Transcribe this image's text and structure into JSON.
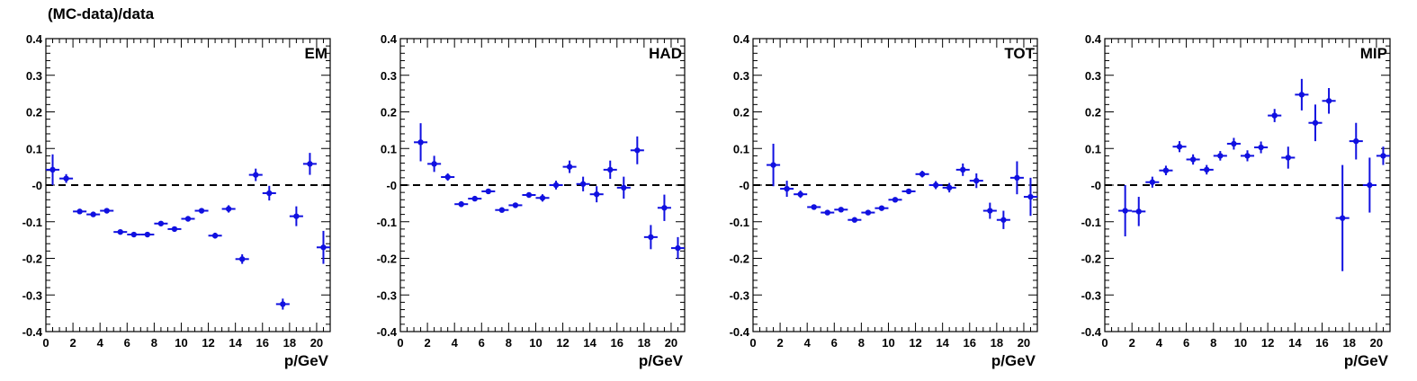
{
  "figure": {
    "ylabel": "(MC-data)/data",
    "xlabel": "p/GeV"
  },
  "colors": {
    "marker": "#1010e0",
    "reference_line": "#000000"
  },
  "chart_data": [
    {
      "type": "scatter",
      "title": "EM",
      "xlabel": "p/GeV",
      "ylabel": "(MC-data)/data",
      "xlim": [
        0,
        21
      ],
      "ylim": [
        -0.4,
        0.4
      ],
      "xticks": [
        "0",
        "2",
        "4",
        "6",
        "8",
        "10",
        "12",
        "14",
        "16",
        "18",
        "20"
      ],
      "yticks": [
        "-0.4",
        "-0.3",
        "-0.2",
        "-0.1",
        "-0",
        "0.1",
        "0.2",
        "0.3",
        "0.4"
      ],
      "reference_line": 0,
      "points": [
        {
          "x": 0.5,
          "y": 0.042,
          "err": 0.042
        },
        {
          "x": 1.5,
          "y": 0.018,
          "err": 0.012
        },
        {
          "x": 2.5,
          "y": -0.072,
          "err": 0.005
        },
        {
          "x": 3.5,
          "y": -0.08,
          "err": 0.005
        },
        {
          "x": 4.5,
          "y": -0.07,
          "err": 0.005
        },
        {
          "x": 5.5,
          "y": -0.128,
          "err": 0.005
        },
        {
          "x": 6.5,
          "y": -0.135,
          "err": 0.005
        },
        {
          "x": 7.5,
          "y": -0.135,
          "err": 0.005
        },
        {
          "x": 8.5,
          "y": -0.105,
          "err": 0.005
        },
        {
          "x": 9.5,
          "y": -0.12,
          "err": 0.006
        },
        {
          "x": 10.5,
          "y": -0.092,
          "err": 0.006
        },
        {
          "x": 11.5,
          "y": -0.07,
          "err": 0.007
        },
        {
          "x": 12.5,
          "y": -0.138,
          "err": 0.008
        },
        {
          "x": 13.5,
          "y": -0.065,
          "err": 0.01
        },
        {
          "x": 14.5,
          "y": -0.202,
          "err": 0.013
        },
        {
          "x": 15.5,
          "y": 0.028,
          "err": 0.017
        },
        {
          "x": 16.5,
          "y": -0.022,
          "err": 0.02
        },
        {
          "x": 17.5,
          "y": -0.325,
          "err": 0.015
        },
        {
          "x": 18.5,
          "y": -0.085,
          "err": 0.027
        },
        {
          "x": 19.5,
          "y": 0.058,
          "err": 0.03
        },
        {
          "x": 20.5,
          "y": -0.17,
          "err": 0.045
        }
      ]
    },
    {
      "type": "scatter",
      "title": "HAD",
      "xlabel": "p/GeV",
      "ylabel": "",
      "xlim": [
        0,
        21
      ],
      "ylim": [
        -0.4,
        0.4
      ],
      "xticks": [
        "0",
        "2",
        "4",
        "6",
        "8",
        "10",
        "12",
        "14",
        "16",
        "18",
        "20"
      ],
      "yticks": [
        "-0.4",
        "-0.3",
        "-0.2",
        "-0.1",
        "-0",
        "0.1",
        "0.2",
        "0.3",
        "0.4"
      ],
      "reference_line": 0,
      "points": [
        {
          "x": 1.5,
          "y": 0.117,
          "err": 0.052
        },
        {
          "x": 2.5,
          "y": 0.058,
          "err": 0.022
        },
        {
          "x": 3.5,
          "y": 0.022,
          "err": 0.01
        },
        {
          "x": 4.5,
          "y": -0.052,
          "err": 0.008
        },
        {
          "x": 5.5,
          "y": -0.037,
          "err": 0.007
        },
        {
          "x": 6.5,
          "y": -0.017,
          "err": 0.006
        },
        {
          "x": 7.5,
          "y": -0.068,
          "err": 0.005
        },
        {
          "x": 8.5,
          "y": -0.055,
          "err": 0.005
        },
        {
          "x": 9.5,
          "y": -0.027,
          "err": 0.007
        },
        {
          "x": 10.5,
          "y": -0.035,
          "err": 0.01
        },
        {
          "x": 11.5,
          "y": 0.0,
          "err": 0.012
        },
        {
          "x": 12.5,
          "y": 0.05,
          "err": 0.017
        },
        {
          "x": 13.5,
          "y": 0.003,
          "err": 0.02
        },
        {
          "x": 14.5,
          "y": -0.025,
          "err": 0.022
        },
        {
          "x": 15.5,
          "y": 0.042,
          "err": 0.025
        },
        {
          "x": 16.5,
          "y": -0.007,
          "err": 0.03
        },
        {
          "x": 17.5,
          "y": 0.095,
          "err": 0.038
        },
        {
          "x": 18.5,
          "y": -0.142,
          "err": 0.033
        },
        {
          "x": 19.5,
          "y": -0.062,
          "err": 0.036
        },
        {
          "x": 20.5,
          "y": -0.172,
          "err": 0.03
        }
      ]
    },
    {
      "type": "scatter",
      "title": "TOT",
      "xlabel": "p/GeV",
      "ylabel": "",
      "xlim": [
        0,
        21
      ],
      "ylim": [
        -0.4,
        0.4
      ],
      "xticks": [
        "0",
        "2",
        "4",
        "6",
        "8",
        "10",
        "12",
        "14",
        "16",
        "18",
        "20"
      ],
      "yticks": [
        "-0.4",
        "-0.3",
        "-0.2",
        "-0.1",
        "-0",
        "0.1",
        "0.2",
        "0.3",
        "0.4"
      ],
      "reference_line": 0,
      "points": [
        {
          "x": 1.5,
          "y": 0.055,
          "err": 0.058
        },
        {
          "x": 2.5,
          "y": -0.01,
          "err": 0.022
        },
        {
          "x": 3.5,
          "y": -0.025,
          "err": 0.01
        },
        {
          "x": 4.5,
          "y": -0.06,
          "err": 0.007
        },
        {
          "x": 5.5,
          "y": -0.075,
          "err": 0.006
        },
        {
          "x": 6.5,
          "y": -0.067,
          "err": 0.005
        },
        {
          "x": 7.5,
          "y": -0.095,
          "err": 0.005
        },
        {
          "x": 8.5,
          "y": -0.075,
          "err": 0.005
        },
        {
          "x": 9.5,
          "y": -0.063,
          "err": 0.005
        },
        {
          "x": 10.5,
          "y": -0.04,
          "err": 0.006
        },
        {
          "x": 11.5,
          "y": -0.017,
          "err": 0.007
        },
        {
          "x": 12.5,
          "y": 0.03,
          "err": 0.009
        },
        {
          "x": 13.5,
          "y": 0.0,
          "err": 0.011
        },
        {
          "x": 14.5,
          "y": -0.007,
          "err": 0.013
        },
        {
          "x": 15.5,
          "y": 0.042,
          "err": 0.017
        },
        {
          "x": 16.5,
          "y": 0.012,
          "err": 0.02
        },
        {
          "x": 17.5,
          "y": -0.07,
          "err": 0.022
        },
        {
          "x": 18.5,
          "y": -0.095,
          "err": 0.025
        },
        {
          "x": 19.5,
          "y": 0.02,
          "err": 0.045
        },
        {
          "x": 20.5,
          "y": -0.032,
          "err": 0.052
        }
      ]
    },
    {
      "type": "scatter",
      "title": "MIP",
      "xlabel": "p/GeV",
      "ylabel": "",
      "xlim": [
        0,
        21
      ],
      "ylim": [
        -0.4,
        0.4
      ],
      "xticks": [
        "0",
        "2",
        "4",
        "6",
        "8",
        "10",
        "12",
        "14",
        "16",
        "18",
        "20"
      ],
      "yticks": [
        "-0.4",
        "-0.3",
        "-0.2",
        "-0.1",
        "-0",
        "0.1",
        "0.2",
        "0.3",
        "0.4"
      ],
      "reference_line": 0,
      "points": [
        {
          "x": 1.5,
          "y": -0.07,
          "err": 0.07
        },
        {
          "x": 2.5,
          "y": -0.072,
          "err": 0.04
        },
        {
          "x": 3.5,
          "y": 0.008,
          "err": 0.015
        },
        {
          "x": 4.5,
          "y": 0.04,
          "err": 0.013
        },
        {
          "x": 5.5,
          "y": 0.105,
          "err": 0.015
        },
        {
          "x": 6.5,
          "y": 0.07,
          "err": 0.014
        },
        {
          "x": 7.5,
          "y": 0.042,
          "err": 0.013
        },
        {
          "x": 8.5,
          "y": 0.08,
          "err": 0.013
        },
        {
          "x": 9.5,
          "y": 0.113,
          "err": 0.016
        },
        {
          "x": 10.5,
          "y": 0.08,
          "err": 0.015
        },
        {
          "x": 11.5,
          "y": 0.103,
          "err": 0.016
        },
        {
          "x": 12.5,
          "y": 0.19,
          "err": 0.018
        },
        {
          "x": 13.5,
          "y": 0.075,
          "err": 0.03
        },
        {
          "x": 14.5,
          "y": 0.247,
          "err": 0.043
        },
        {
          "x": 15.5,
          "y": 0.17,
          "err": 0.05
        },
        {
          "x": 16.5,
          "y": 0.23,
          "err": 0.035
        },
        {
          "x": 17.5,
          "y": -0.09,
          "err": 0.145
        },
        {
          "x": 18.5,
          "y": 0.12,
          "err": 0.05
        },
        {
          "x": 19.5,
          "y": 0.0,
          "err": 0.075
        },
        {
          "x": 20.5,
          "y": 0.08,
          "err": 0.025
        }
      ]
    }
  ]
}
